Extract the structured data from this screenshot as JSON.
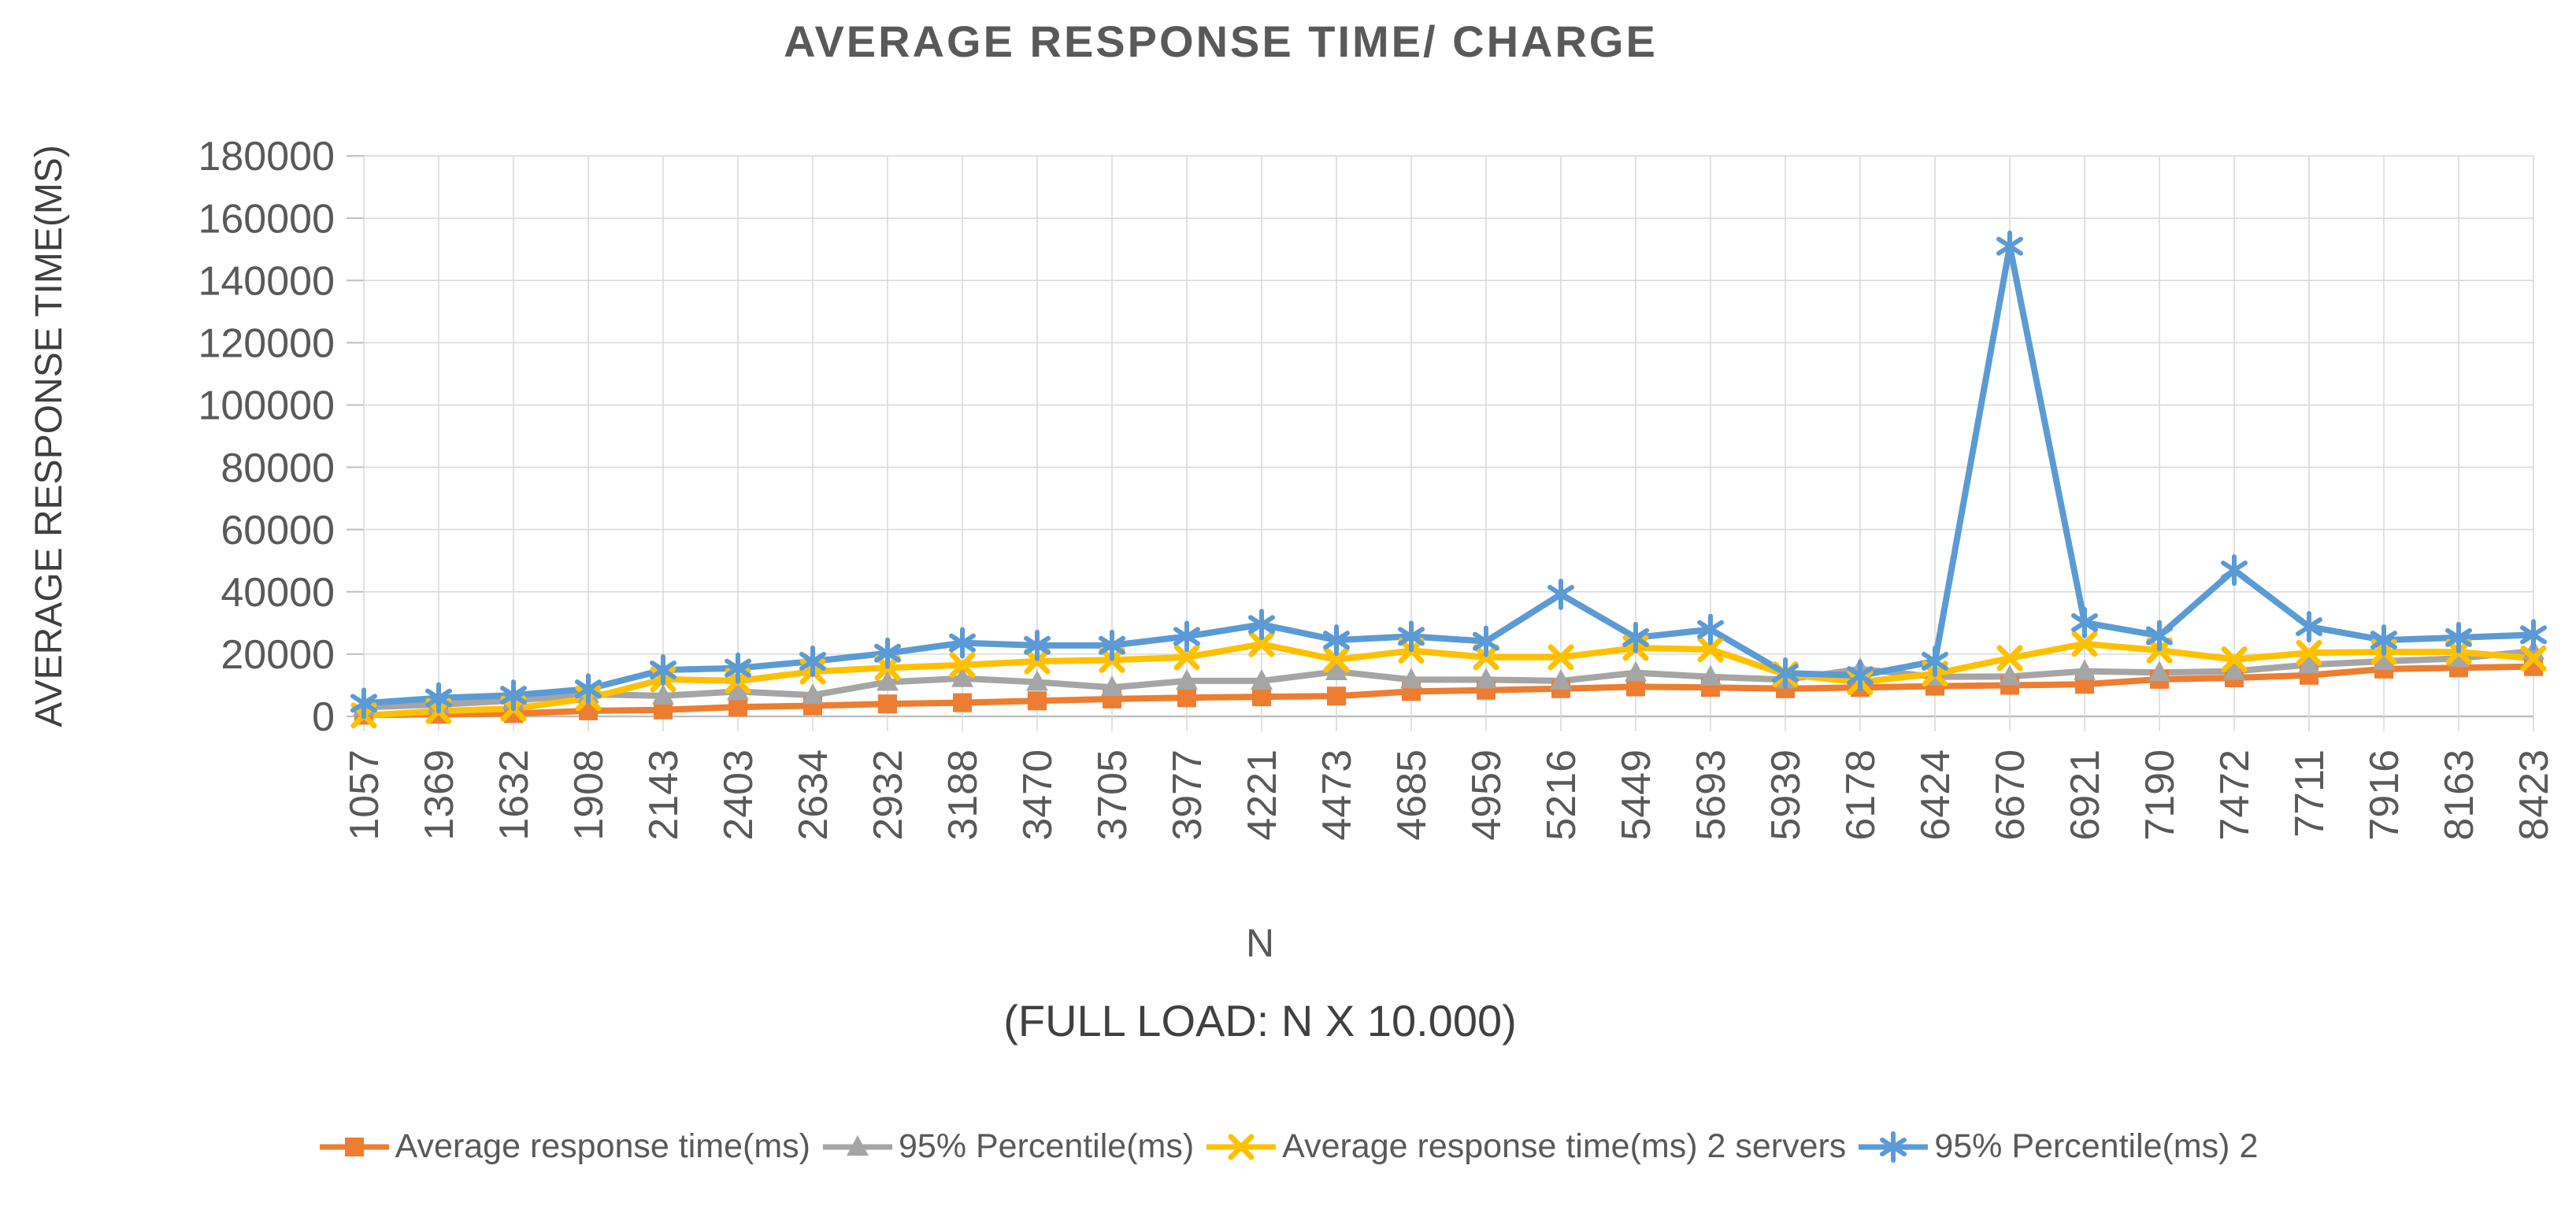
{
  "title": "AVERAGE RESPONSE TIME/ CHARGE",
  "colors": {
    "text": "#595959",
    "title_text": "#595959",
    "axis_title_text": "#404040",
    "gridline": "#D9D9D9",
    "axis_line": "#BFBFBF",
    "background": "#FFFFFF"
  },
  "chart_data": {
    "type": "line",
    "title": "AVERAGE RESPONSE TIME/ CHARGE",
    "xlabel_line1": "N",
    "xlabel_line2": "(FULL LOAD: N X 10.000)",
    "ylabel": "AVERAGE RESPONSE TIME(MS)",
    "ylim": [
      0,
      180000
    ],
    "yticks": [
      0,
      20000,
      40000,
      60000,
      80000,
      100000,
      120000,
      140000,
      160000,
      180000
    ],
    "grid": "both",
    "legend_position": "bottom",
    "categories": [
      "1057",
      "1369",
      "1632",
      "1908",
      "2143",
      "2403",
      "2634",
      "2932",
      "3188",
      "3470",
      "3705",
      "3977",
      "4221",
      "4473",
      "4685",
      "4959",
      "5216",
      "5449",
      "5693",
      "5939",
      "6178",
      "6424",
      "6670",
      "6921",
      "7190",
      "7472",
      "7711",
      "7916",
      "8163",
      "8423"
    ],
    "series": [
      {
        "name": "Average response time(ms)",
        "color": "#ED7D31",
        "marker": "square",
        "values": [
          400,
          700,
          900,
          1800,
          2100,
          3000,
          3400,
          4000,
          4400,
          5000,
          5600,
          6000,
          6300,
          6500,
          8000,
          8400,
          8900,
          9500,
          9300,
          8900,
          9300,
          9700,
          10000,
          10300,
          11900,
          12400,
          13200,
          15200,
          15600,
          16000
        ]
      },
      {
        "name": "95% Percentile(ms)",
        "color": "#A5A5A5",
        "marker": "triangle",
        "values": [
          2900,
          3800,
          5100,
          7100,
          6600,
          8000,
          6800,
          11000,
          12200,
          11000,
          9300,
          11400,
          11400,
          14400,
          11800,
          11800,
          11400,
          14000,
          12700,
          11800,
          15200,
          12700,
          12800,
          14500,
          14100,
          14500,
          16600,
          17700,
          18600,
          21000
        ]
      },
      {
        "name": "Average response time(ms) 2 servers",
        "color": "#FFC000",
        "marker": "x",
        "values": [
          300,
          1700,
          2500,
          5800,
          11900,
          11400,
          14400,
          15600,
          16500,
          17700,
          18100,
          19000,
          23200,
          18200,
          21100,
          19000,
          19000,
          22000,
          21500,
          13500,
          11000,
          13700,
          18700,
          23300,
          21200,
          18300,
          20400,
          20700,
          20700,
          18600
        ]
      },
      {
        "name": "95% Percentile(ms) 2",
        "color": "#5B9BD5",
        "marker": "asterisk",
        "values": [
          4200,
          5900,
          6800,
          8800,
          14900,
          15500,
          17700,
          20300,
          23600,
          22800,
          22800,
          25700,
          29500,
          24500,
          25700,
          24100,
          39200,
          25300,
          27900,
          13900,
          13100,
          17700,
          151000,
          30100,
          25900,
          47000,
          28800,
          24500,
          25300,
          26200
        ]
      }
    ]
  }
}
